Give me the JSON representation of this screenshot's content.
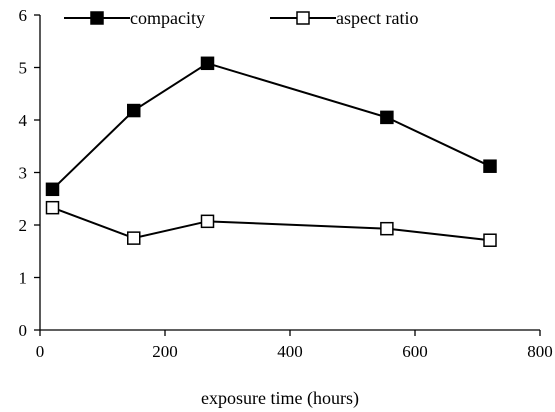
{
  "chart_data": {
    "type": "line",
    "title": "",
    "xlabel": "exposure time (hours)",
    "ylabel": "",
    "xlim": [
      0,
      800
    ],
    "ylim": [
      0,
      6
    ],
    "xticks": [
      "0",
      "200",
      "400",
      "600",
      "800"
    ],
    "yticks": [
      "0",
      "1",
      "2",
      "3",
      "4",
      "5",
      "6"
    ],
    "grid": false,
    "legend_position": "top",
    "x": [
      20,
      150,
      268,
      555,
      720
    ],
    "series": [
      {
        "name": "compacity",
        "marker": "filled-square",
        "values": [
          2.68,
          4.18,
          5.08,
          4.05,
          3.12
        ]
      },
      {
        "name": "aspect ratio",
        "marker": "open-square",
        "values": [
          2.33,
          1.75,
          2.07,
          1.93,
          1.71
        ]
      }
    ]
  }
}
